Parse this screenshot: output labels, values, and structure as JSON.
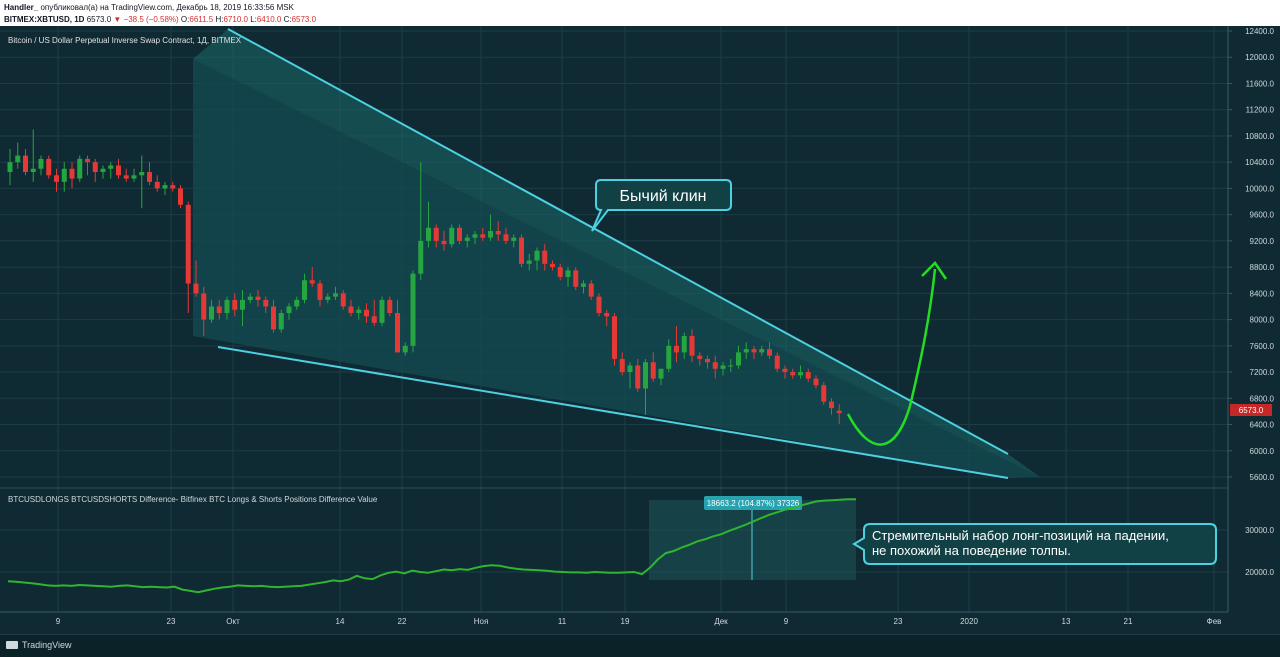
{
  "header": {
    "author_line": {
      "author": "Handler_",
      "text": " опубликовал(а) на TradingView.com, Декабрь 18, 2019 16:33:56 MSK"
    },
    "symbol_line": {
      "symbol": "BITMEX:XBTUSD, 1D",
      "price": "6573.0",
      "change": "▼ −38.5 (−0.58%)",
      "o_label": "O:",
      "o_value": "6611.5",
      "h_label": "H:",
      "h_value": "6710.0",
      "l_label": "L:",
      "l_value": "6410.0",
      "c_label": "C:",
      "c_value": "6573.0"
    }
  },
  "main_pane": {
    "title": "Bitcoin / US Dollar Perpetual Inverse Swap Contract, 1Д, BITMEX",
    "price_axis": [
      "12400.0",
      "12000.0",
      "11600.0",
      "11200.0",
      "10800.0",
      "10400.0",
      "10000.0",
      "9600.0",
      "9200.0",
      "8800.0",
      "8400.0",
      "8000.0",
      "7600.0",
      "7200.0",
      "6800.0",
      "6400.0",
      "6000.0",
      "5600.0"
    ],
    "last_price_label": "6573.0",
    "annotation": "Бычий клин"
  },
  "indicator_pane": {
    "title": "BTCUSDLONGS BTCUSDSHORTS Difference- Bitfinex BTC Longs & Shorts Positions Difference Value",
    "axis": [
      "30000.0",
      "20000.0"
    ],
    "measure_label": "18663.2 (104.87%) 37326",
    "annotation_line1": "Стремительный набор лонг-позиций на падении,",
    "annotation_line2": "не похожий на поведение толпы."
  },
  "time_axis": [
    "9",
    "23",
    "Окт",
    "14",
    "22",
    "Ноя",
    "11",
    "19",
    "Дек",
    "9",
    "23",
    "2020",
    "13",
    "21",
    "Фев"
  ],
  "footer": {
    "brand": "TradingView"
  },
  "colors": {
    "background": "#0f2a33",
    "up": "#26a641",
    "down": "#e53935",
    "trendline": "#4dd0e1",
    "arrow": "#22dd22",
    "indicator": "#2fb52f"
  },
  "chart_data": [
    {
      "type": "candlestick",
      "title": "Bitcoin / US Dollar Perpetual Inverse Swap Contract, 1Д, BITMEX",
      "ylim": [
        5500,
        12500
      ],
      "x_labels": [
        "9",
        "23",
        "Окт",
        "14",
        "22",
        "Ноя",
        "11",
        "19",
        "Дек",
        "9",
        "23",
        "2020",
        "13",
        "21",
        "Фев"
      ],
      "last_price": 6573.0,
      "ohlc": [
        [
          10250,
          10600,
          10050,
          10400
        ],
        [
          10400,
          10700,
          10300,
          10500
        ],
        [
          10500,
          10600,
          10200,
          10250
        ],
        [
          10250,
          10900,
          10100,
          10300
        ],
        [
          10300,
          10500,
          10200,
          10450
        ],
        [
          10450,
          10500,
          10150,
          10200
        ],
        [
          10200,
          10300,
          9950,
          10100
        ],
        [
          10100,
          10400,
          9950,
          10300
        ],
        [
          10300,
          10400,
          10000,
          10150
        ],
        [
          10150,
          10500,
          10100,
          10450
        ],
        [
          10450,
          10500,
          10200,
          10400
        ],
        [
          10400,
          10450,
          10100,
          10250
        ],
        [
          10250,
          10350,
          10150,
          10300
        ],
        [
          10300,
          10400,
          10150,
          10350
        ],
        [
          10350,
          10450,
          10150,
          10200
        ],
        [
          10200,
          10300,
          10100,
          10150
        ],
        [
          10150,
          10300,
          10100,
          10200
        ],
        [
          10200,
          10500,
          9700,
          10250
        ],
        [
          10250,
          10400,
          10050,
          10100
        ],
        [
          10100,
          10200,
          9950,
          10000
        ],
        [
          10000,
          10100,
          9900,
          10050
        ],
        [
          10050,
          10100,
          9950,
          10000
        ],
        [
          10000,
          10050,
          9700,
          9750
        ],
        [
          9750,
          9800,
          8100,
          8550
        ],
        [
          8550,
          8900,
          8350,
          8400
        ],
        [
          8400,
          8500,
          7750,
          8000
        ],
        [
          8000,
          8300,
          7950,
          8200
        ],
        [
          8200,
          8300,
          8000,
          8100
        ],
        [
          8100,
          8350,
          8000,
          8300
        ],
        [
          8300,
          8400,
          8050,
          8150
        ],
        [
          8150,
          8450,
          7900,
          8300
        ],
        [
          8300,
          8400,
          8250,
          8350
        ],
        [
          8350,
          8450,
          8200,
          8300
        ],
        [
          8300,
          8350,
          8100,
          8200
        ],
        [
          8200,
          8300,
          7800,
          7850
        ],
        [
          7850,
          8150,
          7800,
          8100
        ],
        [
          8100,
          8250,
          8000,
          8200
        ],
        [
          8200,
          8350,
          8150,
          8300
        ],
        [
          8300,
          8700,
          8250,
          8600
        ],
        [
          8600,
          8800,
          8500,
          8550
        ],
        [
          8550,
          8600,
          8200,
          8300
        ],
        [
          8300,
          8400,
          8250,
          8350
        ],
        [
          8350,
          8500,
          8300,
          8400
        ],
        [
          8400,
          8450,
          8150,
          8200
        ],
        [
          8200,
          8300,
          8050,
          8100
        ],
        [
          8100,
          8200,
          8000,
          8150
        ],
        [
          8150,
          8250,
          7950,
          8050
        ],
        [
          8050,
          8300,
          7900,
          7950
        ],
        [
          7950,
          8350,
          7900,
          8300
        ],
        [
          8300,
          8350,
          8050,
          8100
        ],
        [
          8100,
          8300,
          7500,
          7500
        ],
        [
          7500,
          7650,
          7450,
          7600
        ],
        [
          7600,
          8750,
          7500,
          8700
        ],
        [
          8700,
          10400,
          8600,
          9200
        ],
        [
          9200,
          9800,
          9100,
          9400
        ],
        [
          9400,
          9450,
          9100,
          9200
        ],
        [
          9200,
          9350,
          9050,
          9150
        ],
        [
          9150,
          9450,
          9100,
          9400
        ],
        [
          9400,
          9450,
          9150,
          9200
        ],
        [
          9200,
          9300,
          9100,
          9250
        ],
        [
          9250,
          9350,
          9150,
          9300
        ],
        [
          9300,
          9400,
          9200,
          9250
        ],
        [
          9250,
          9600,
          9200,
          9350
        ],
        [
          9350,
          9500,
          9200,
          9300
        ],
        [
          9300,
          9400,
          9150,
          9200
        ],
        [
          9200,
          9300,
          9100,
          9250
        ],
        [
          9250,
          9300,
          8800,
          8850
        ],
        [
          8850,
          9000,
          8750,
          8900
        ],
        [
          8900,
          9100,
          8750,
          9050
        ],
        [
          9050,
          9150,
          8750,
          8850
        ],
        [
          8850,
          8900,
          8750,
          8800
        ],
        [
          8800,
          8850,
          8600,
          8650
        ],
        [
          8650,
          8800,
          8500,
          8750
        ],
        [
          8750,
          8800,
          8450,
          8500
        ],
        [
          8500,
          8600,
          8400,
          8550
        ],
        [
          8550,
          8600,
          8300,
          8350
        ],
        [
          8350,
          8400,
          8050,
          8100
        ],
        [
          8100,
          8150,
          7900,
          8050
        ],
        [
          8050,
          8100,
          7300,
          7400
        ],
        [
          7400,
          7500,
          7150,
          7200
        ],
        [
          7200,
          7350,
          6950,
          7300
        ],
        [
          7300,
          7400,
          6900,
          6950
        ],
        [
          6950,
          7400,
          6550,
          7350
        ],
        [
          7350,
          7500,
          7050,
          7100
        ],
        [
          7100,
          7250,
          7000,
          7250
        ],
        [
          7250,
          7700,
          7200,
          7600
        ],
        [
          7600,
          7900,
          7350,
          7500
        ],
        [
          7500,
          7800,
          7400,
          7750
        ],
        [
          7750,
          7850,
          7350,
          7450
        ],
        [
          7450,
          7500,
          7300,
          7400
        ],
        [
          7400,
          7450,
          7250,
          7350
        ],
        [
          7350,
          7450,
          7100,
          7250
        ],
        [
          7250,
          7350,
          7150,
          7300
        ],
        [
          7300,
          7400,
          7200,
          7300
        ],
        [
          7300,
          7600,
          7250,
          7500
        ],
        [
          7500,
          7650,
          7400,
          7550
        ],
        [
          7550,
          7600,
          7400,
          7500
        ],
        [
          7500,
          7600,
          7450,
          7550
        ],
        [
          7550,
          7650,
          7400,
          7450
        ],
        [
          7450,
          7500,
          7200,
          7250
        ],
        [
          7250,
          7300,
          7100,
          7200
        ],
        [
          7200,
          7250,
          7100,
          7150
        ],
        [
          7150,
          7300,
          7100,
          7200
        ],
        [
          7200,
          7250,
          7050,
          7100
        ],
        [
          7100,
          7150,
          6950,
          7000
        ],
        [
          7000,
          7050,
          6700,
          6750
        ],
        [
          6750,
          6800,
          6550,
          6650
        ],
        [
          6611.5,
          6710,
          6410,
          6573
        ]
      ]
    },
    {
      "type": "line",
      "title": "BTCUSDLONGS BTCUSDSHORTS Difference- Bitfinex BTC Longs & Shorts Positions Difference Value",
      "ylim": [
        10000,
        38000
      ],
      "values": [
        17800,
        17700,
        17500,
        17300,
        17100,
        16800,
        16700,
        16800,
        16700,
        16900,
        16800,
        16700,
        16600,
        16500,
        16700,
        16800,
        16600,
        16400,
        16500,
        16400,
        16300,
        16500,
        15800,
        15500,
        15200,
        15600,
        16000,
        16300,
        16500,
        16800,
        16700,
        16600,
        16700,
        16500,
        16400,
        16500,
        16600,
        16700,
        17000,
        17300,
        17600,
        18000,
        17800,
        18200,
        19100,
        18500,
        18300,
        19200,
        19800,
        20100,
        19700,
        20300,
        20000,
        19800,
        20200,
        20600,
        20400,
        20700,
        20500,
        21000,
        21400,
        21600,
        21500,
        21100,
        20800,
        20600,
        20500,
        20400,
        20300,
        20100,
        20000,
        19900,
        19900,
        19800,
        20000,
        19900,
        19800,
        19800,
        19900,
        20000,
        19500,
        21000,
        23000,
        24500,
        25000,
        25800,
        26500,
        27300,
        27800,
        28500,
        29000,
        29800,
        30500,
        31200,
        32000,
        32800,
        33600,
        34200,
        34800,
        35200,
        35800,
        36300,
        36800,
        37000,
        37100,
        37200,
        37300,
        37300
      ]
    }
  ]
}
